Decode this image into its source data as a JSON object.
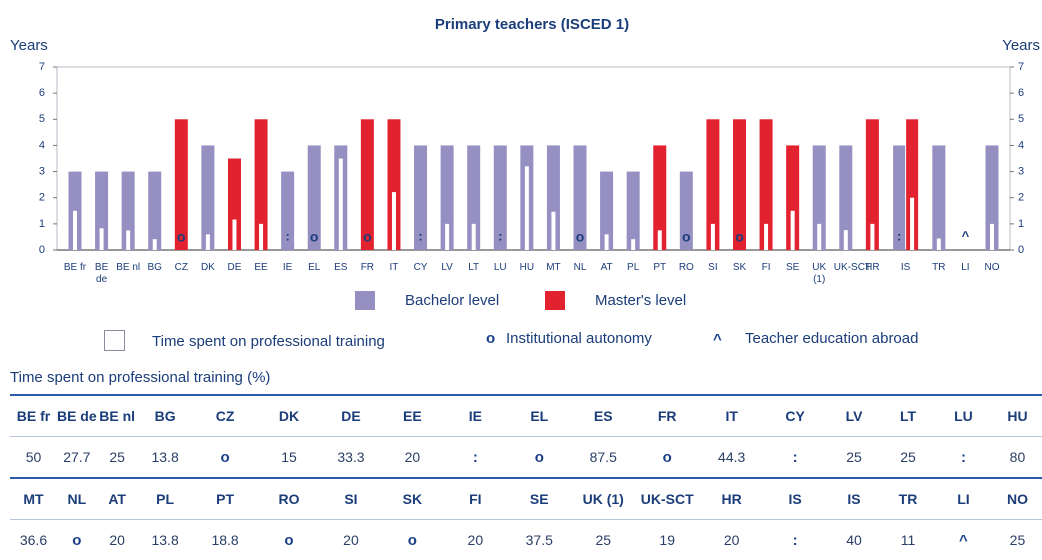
{
  "chart_data": {
    "type": "bar",
    "title": "Primary teachers (ISCED 1)",
    "y_label": "Years",
    "y2_label": "Years",
    "categories": [
      "BE fr",
      "BE de",
      "BE nl",
      "BG",
      "CZ",
      "DK",
      "DE",
      "EE",
      "IE",
      "EL",
      "ES",
      "FR",
      "IT",
      "CY",
      "LV",
      "LT",
      "LU",
      "HU",
      "MT",
      "NL",
      "AT",
      "PL",
      "PT",
      "RO",
      "SI",
      "SK",
      "FI",
      "SE",
      "UK (1)",
      "UK-SCT",
      "HR",
      "IS",
      "TR",
      "LI",
      "NO"
    ],
    "series": [
      {
        "name": "Bachelor level",
        "color": "#958fc2",
        "values": [
          3,
          3,
          3,
          3,
          null,
          4,
          null,
          null,
          3,
          4,
          4,
          null,
          null,
          4,
          4,
          4,
          4,
          4,
          4,
          4,
          3,
          3,
          null,
          3,
          null,
          null,
          null,
          null,
          4,
          4,
          null,
          4,
          4,
          null,
          4
        ]
      },
      {
        "name": "Master's level",
        "color": "#e2232f",
        "values": [
          null,
          null,
          null,
          null,
          5,
          null,
          3.5,
          5,
          null,
          null,
          null,
          5,
          5,
          null,
          null,
          null,
          null,
          null,
          null,
          null,
          null,
          null,
          4,
          null,
          5,
          5,
          5,
          4,
          null,
          null,
          5,
          5,
          null,
          null,
          null
        ]
      }
    ],
    "ylim": [
      0,
      7
    ],
    "yticks": [
      0,
      1,
      2,
      3,
      4,
      5,
      6,
      7
    ],
    "y2lim": [
      0,
      7
    ],
    "y2ticks": [
      0,
      1,
      2,
      3,
      4,
      5,
      6,
      7
    ],
    "legend": {
      "training": "Time spent on professional training",
      "autonomy_symbol": "o",
      "autonomy": "Institutional autonomy",
      "abroad_symbol": "^",
      "abroad": "Teacher education abroad"
    }
  },
  "table": {
    "title": "Time spent on professional training (%)",
    "rows": [
      {
        "headers": [
          "BE fr",
          "BE de",
          "BE nl",
          "BG",
          "CZ",
          "DK",
          "DE",
          "EE",
          "IE",
          "EL",
          "ES",
          "FR",
          "IT",
          "CY",
          "LV",
          "LT",
          "LU",
          "HU"
        ],
        "values": [
          50,
          27.7,
          25,
          13.8,
          "o",
          15,
          33.3,
          20,
          ":",
          "o",
          87.5,
          "o",
          44.3,
          ":",
          25,
          25,
          ":",
          80
        ]
      },
      {
        "headers": [
          "MT",
          "NL",
          "AT",
          "PL",
          "PT",
          "RO",
          "SI",
          "SK",
          "FI",
          "SE",
          "UK (1)",
          "UK-SCT",
          "HR",
          "IS",
          "IS",
          "TR",
          "LI",
          "NO"
        ],
        "values": [
          36.6,
          "o",
          20,
          13.8,
          18.8,
          "o",
          20,
          "o",
          20,
          37.5,
          25,
          19,
          20,
          ":",
          40,
          11,
          "^",
          25
        ]
      }
    ]
  }
}
